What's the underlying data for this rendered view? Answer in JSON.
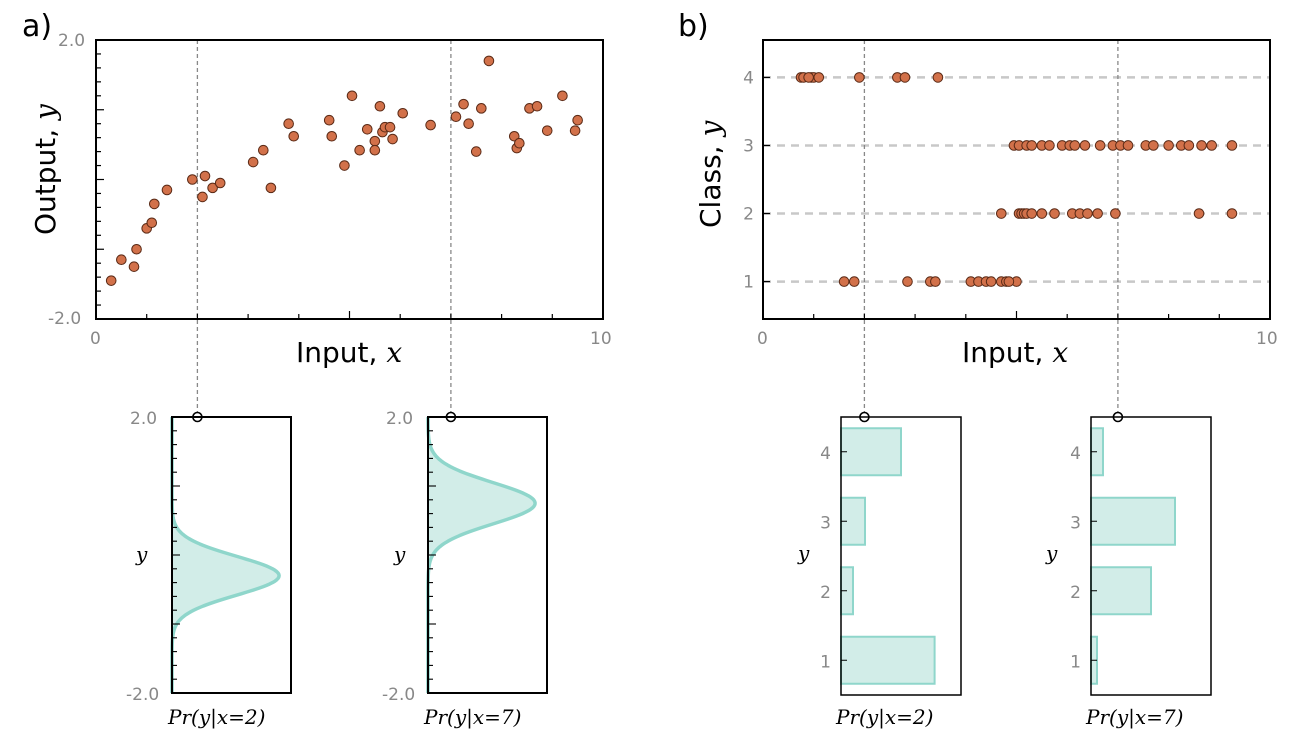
{
  "colors": {
    "point_fill": "#d2714a",
    "point_stroke": "#5a2a16",
    "dist_fill": "#d2ede8",
    "dist_stroke": "#8fd6cb",
    "grid": "#c8c8c8",
    "guide": "#888888",
    "tick_text": "#888888"
  },
  "panel_a": {
    "label": "a)",
    "xlabel": "Input, ",
    "xlabel_var": "x",
    "ylabel": "Output, ",
    "ylabel_var": "y",
    "xticks": [
      "0",
      "10"
    ],
    "yticks": [
      "2.0",
      "-2.0"
    ],
    "sub_left_label": "Pr(y|x=2)",
    "sub_right_label": "Pr(y|x=7)",
    "sub_ylabel": "y",
    "sub_yticks": [
      "2.0",
      "-2.0"
    ]
  },
  "panel_b": {
    "label": "b)",
    "xlabel": "Input, ",
    "xlabel_var": "x",
    "ylabel": "Class, ",
    "ylabel_var": "y",
    "xticks": [
      "0",
      "10"
    ],
    "yticks": [
      "1",
      "2",
      "3",
      "4"
    ],
    "sub_left_label": "Pr(y|x=2)",
    "sub_right_label": "Pr(y|x=7)",
    "sub_ylabel": "y",
    "sub_yticks": [
      "1",
      "2",
      "3",
      "4"
    ]
  },
  "chart_data": [
    {
      "type": "scatter",
      "id": "regression",
      "xlim": [
        0,
        10
      ],
      "ylim": [
        -2,
        2
      ],
      "guide_x": [
        2,
        7
      ],
      "x": [
        0.3,
        0.5,
        0.75,
        0.8,
        1.0,
        1.1,
        1.15,
        1.4,
        1.9,
        2.1,
        2.15,
        2.3,
        2.45,
        3.1,
        3.3,
        3.45,
        3.8,
        3.9,
        4.6,
        4.65,
        4.9,
        5.05,
        5.2,
        5.35,
        5.5,
        5.5,
        5.6,
        5.65,
        5.7,
        5.8,
        5.85,
        6.05,
        6.6,
        7.1,
        7.25,
        7.35,
        7.5,
        7.6,
        7.75,
        8.25,
        8.3,
        8.35,
        8.55,
        8.7,
        8.9,
        9.2,
        9.45,
        9.5
      ],
      "y": [
        -1.45,
        -1.15,
        -1.25,
        -1.0,
        -0.7,
        -0.62,
        -0.35,
        -0.15,
        0.0,
        -0.25,
        0.05,
        -0.12,
        -0.05,
        0.25,
        0.42,
        -0.12,
        0.8,
        0.62,
        0.85,
        0.62,
        0.2,
        1.2,
        0.42,
        0.72,
        0.55,
        0.42,
        1.05,
        0.68,
        0.75,
        0.75,
        0.58,
        0.95,
        0.78,
        0.9,
        1.08,
        0.8,
        0.4,
        1.02,
        1.7,
        0.62,
        0.45,
        0.52,
        1.02,
        1.05,
        0.7,
        1.2,
        0.7,
        0.85
      ]
    },
    {
      "type": "scatter",
      "id": "classification",
      "xlim": [
        0,
        10
      ],
      "ylim": [
        0.45,
        4.55
      ],
      "guide_x": [
        2,
        7
      ],
      "x": [
        0.75,
        0.8,
        0.95,
        1.0,
        1.1,
        1.9,
        2.65,
        2.8,
        3.45,
        0.9,
        1.6,
        1.8,
        2.85,
        3.3,
        3.4,
        4.1,
        4.25,
        4.4,
        4.5,
        4.7,
        4.8,
        5.0,
        4.85,
        4.95,
        5.05,
        5.2,
        5.3,
        5.5,
        5.65,
        5.9,
        6.05,
        6.15,
        6.35,
        6.65,
        6.9,
        7.05,
        7.2,
        7.55,
        7.7,
        8.0,
        8.25,
        8.4,
        8.65,
        8.85,
        9.25,
        4.7,
        5.05,
        5.1,
        5.15,
        5.2,
        5.3,
        5.5,
        5.75,
        6.1,
        6.25,
        6.4,
        6.6,
        6.95,
        8.6,
        9.25
      ],
      "y": [
        4,
        4,
        4,
        4,
        4,
        4,
        4,
        4,
        4,
        4,
        1,
        1,
        1,
        1,
        1,
        1,
        1,
        1,
        1,
        1,
        1,
        1,
        1,
        3,
        3,
        3,
        3,
        3,
        3,
        3,
        3,
        3,
        3,
        3,
        3,
        3,
        3,
        3,
        3,
        3,
        3,
        3,
        3,
        3,
        3,
        2,
        2,
        2,
        2,
        2,
        2,
        2,
        2,
        2,
        2,
        2,
        2,
        2,
        2,
        2
      ]
    },
    {
      "type": "area",
      "id": "normal_x2",
      "x_value": 2,
      "ylim": [
        -2,
        2
      ],
      "mean": -0.3,
      "std": 0.28,
      "peak": 1.0
    },
    {
      "type": "area",
      "id": "normal_x7",
      "x_value": 7,
      "ylim": [
        -2,
        2
      ],
      "mean": 0.75,
      "std": 0.3,
      "peak": 1.0
    },
    {
      "type": "bar",
      "id": "categorical_x2",
      "x_value": 2,
      "categories": [
        "1",
        "2",
        "3",
        "4"
      ],
      "values": [
        0.78,
        0.1,
        0.2,
        0.5
      ]
    },
    {
      "type": "bar",
      "id": "categorical_x7",
      "x_value": 7,
      "categories": [
        "1",
        "2",
        "3",
        "4"
      ],
      "values": [
        0.05,
        0.5,
        0.7,
        0.1
      ]
    }
  ]
}
